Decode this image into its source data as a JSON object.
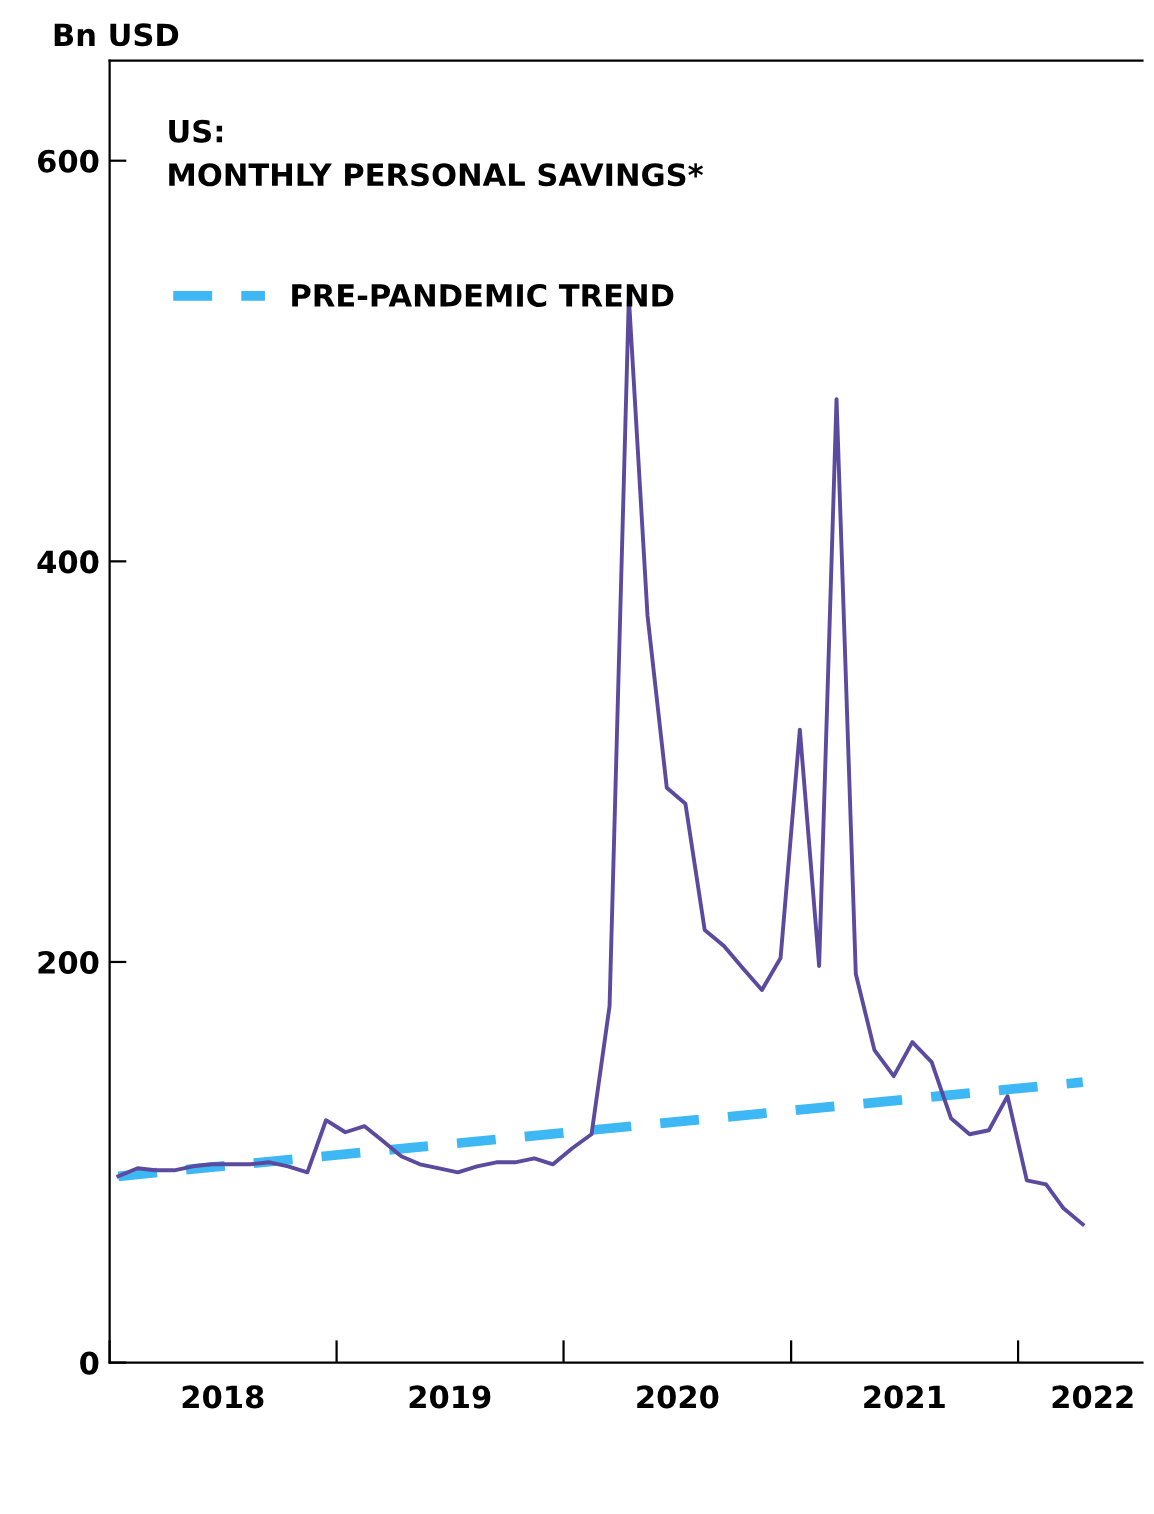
{
  "chart_data": {
    "type": "line",
    "title": "US:\nMONTHLY PERSONAL SAVINGS*",
    "ylabel": "Bn USD",
    "x": [
      "2018-01-15",
      "2018-02-15",
      "2018-03-15",
      "2018-04-15",
      "2018-05-15",
      "2018-06-15",
      "2018-07-15",
      "2018-08-15",
      "2018-09-15",
      "2018-10-15",
      "2018-11-15",
      "2018-12-15",
      "2019-01-15",
      "2019-02-15",
      "2019-03-15",
      "2019-04-15",
      "2019-05-15",
      "2019-06-15",
      "2019-07-15",
      "2019-08-15",
      "2019-09-15",
      "2019-10-15",
      "2019-11-15",
      "2019-12-15",
      "2020-01-15",
      "2020-02-15",
      "2020-03-15",
      "2020-04-15",
      "2020-05-15",
      "2020-06-15",
      "2020-07-15",
      "2020-08-15",
      "2020-09-15",
      "2020-10-15",
      "2020-11-15",
      "2020-12-15",
      "2021-01-15",
      "2021-02-15",
      "2021-03-15",
      "2021-04-15",
      "2021-05-15",
      "2021-06-15",
      "2021-07-15",
      "2021-08-15",
      "2021-09-15",
      "2021-10-15",
      "2021-11-15",
      "2021-12-15",
      "2022-01-15",
      "2022-02-15",
      "2022-03-15",
      "2022-04-15"
    ],
    "series": [
      {
        "color": "#5b4a9e",
        "line_style": "solid",
        "values": [
          93,
          97,
          96,
          96,
          98,
          99,
          99,
          99,
          100,
          98,
          95,
          121,
          115,
          118,
          111,
          103,
          99,
          97,
          95,
          98,
          100,
          100,
          102,
          99,
          107,
          114,
          178,
          532,
          373,
          287,
          279,
          216,
          208,
          197,
          186,
          202,
          316,
          198,
          481,
          194,
          156,
          143,
          160,
          150,
          122,
          114,
          116,
          133,
          91,
          89,
          77,
          69
        ]
      },
      {
        "name": "PRE-PANDEMIC TREND",
        "color": "#3db8f5",
        "line_style": "dashed",
        "x": [
          "2018-01-15",
          "2022-04-15"
        ],
        "values": [
          93,
          140
        ]
      }
    ],
    "xlim": [
      "2018-01-01",
      "2022-07-20"
    ],
    "xticks": [
      {
        "value": "2018-01-01",
        "label": null
      },
      {
        "value": "2018-07-02",
        "label": "2018"
      },
      {
        "value": "2019-01-01",
        "label": null
      },
      {
        "value": "2019-07-02",
        "label": "2019"
      },
      {
        "value": "2020-01-01",
        "label": null
      },
      {
        "value": "2020-07-02",
        "label": "2020"
      },
      {
        "value": "2021-01-01",
        "label": null
      },
      {
        "value": "2021-07-02",
        "label": "2021"
      },
      {
        "value": "2022-01-01",
        "label": null
      },
      {
        "value": "2022-05-01",
        "label": "2022"
      }
    ],
    "ylim": [
      0,
      650
    ],
    "yticks": [
      0,
      200,
      400,
      600
    ],
    "grid": false,
    "legend": "top left",
    "marker": "none"
  }
}
